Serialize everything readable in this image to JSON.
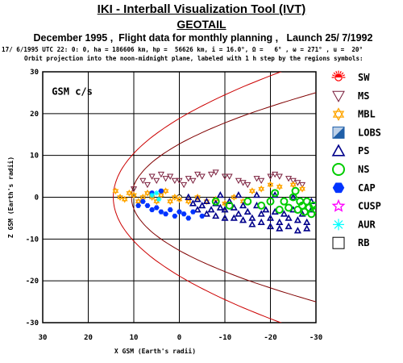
{
  "header": {
    "title": "IKI - Interball Visualization Tool (IVT)",
    "satellite": "GEOTAIL",
    "subtitle": "December 1995 ,  Flight data for monthly planning ,   Launch 25/ 7/1992",
    "orbit_params": "17/ 6/1995 UTC 22: 0: 0, ha = 186606 km, hp =  56626 km, i = 16.0°, Ω =   6° , ω = 271° , u =  20°",
    "note": "Orbit projection into the noon-midnight plane, labeled with 1 h step by the regions symbols:"
  },
  "chart_data": {
    "type": "scatter",
    "coord_label": "GSM c/s",
    "xlabel": "X GSM (Earth's radii)",
    "ylabel": "Z GSM (Earth's radii)",
    "xlim": [
      30,
      -30
    ],
    "ylim": [
      -30,
      30
    ],
    "x_ticks": [
      "30",
      "20",
      "10",
      "0",
      "-10",
      "-20",
      "-30"
    ],
    "y_ticks": [
      "30",
      "20",
      "10",
      "0",
      "-10",
      "-20",
      "-30"
    ],
    "grid": true,
    "legend": [
      {
        "name": "SW",
        "symbol": "sun",
        "color": "#ff0000"
      },
      {
        "name": "MS",
        "symbol": "triangle-down-open",
        "color": "#7a1e3c"
      },
      {
        "name": "MBL",
        "symbol": "star-of-david",
        "color": "#ffa500"
      },
      {
        "name": "LOBS",
        "symbol": "half-square",
        "color": "#1f5fa8"
      },
      {
        "name": "PS",
        "symbol": "triangle-open",
        "color": "#00008b"
      },
      {
        "name": "NS",
        "symbol": "circle-open",
        "color": "#00cc00"
      },
      {
        "name": "CAP",
        "symbol": "hexagon-filled",
        "color": "#0033ff"
      },
      {
        "name": "CUSP",
        "symbol": "star-open",
        "color": "#ff00ff"
      },
      {
        "name": "AUR",
        "symbol": "asterisk",
        "color": "#00ffff"
      },
      {
        "name": "RB",
        "symbol": "square-open",
        "color": "#000000"
      }
    ],
    "boundaries": [
      {
        "name": "bow shock",
        "color": "#cc0000",
        "nose_x": 14.5,
        "flank_z_at_x_minus30": 33
      },
      {
        "name": "magnetopause",
        "color": "#800000",
        "nose_x": 10.5,
        "flank_z_at_x_minus30": 25
      }
    ],
    "earth": {
      "x": 0,
      "z": 0
    },
    "series": [
      {
        "name": "MS",
        "points": [
          [
            10,
            2
          ],
          [
            8,
            4
          ],
          [
            6,
            5
          ],
          [
            4,
            5.5
          ],
          [
            2,
            5
          ],
          [
            0,
            4
          ],
          [
            -1,
            3
          ],
          [
            -3,
            4
          ],
          [
            -5,
            5
          ],
          [
            -7,
            5.5
          ],
          [
            -10,
            5
          ],
          [
            -13,
            4
          ],
          [
            -15,
            3
          ],
          [
            -18,
            4
          ],
          [
            -20,
            5
          ],
          [
            -22,
            5
          ],
          [
            -25,
            4
          ],
          [
            -27,
            3
          ],
          [
            7,
            3
          ],
          [
            5,
            4
          ],
          [
            3,
            4.5
          ],
          [
            1,
            4
          ],
          [
            -2,
            4.5
          ],
          [
            -4,
            5.5
          ],
          [
            -8,
            6
          ],
          [
            -11,
            5
          ],
          [
            -14,
            3.5
          ],
          [
            -17,
            4.5
          ],
          [
            -21,
            5.5
          ],
          [
            -24,
            4.5
          ],
          [
            -26,
            3.5
          ]
        ]
      },
      {
        "name": "MBL",
        "points": [
          [
            14,
            1.5
          ],
          [
            13,
            0
          ],
          [
            12,
            -0.5
          ],
          [
            11,
            1
          ],
          [
            10,
            0.5
          ],
          [
            9,
            -1
          ],
          [
            8,
            0
          ],
          [
            7,
            1
          ],
          [
            6,
            0
          ],
          [
            5,
            -1
          ],
          [
            4,
            0.5
          ],
          [
            3,
            1.5
          ],
          [
            2,
            -1
          ],
          [
            1,
            0
          ],
          [
            0,
            -0.5
          ],
          [
            -2,
            -1
          ],
          [
            -4,
            0
          ],
          [
            -6,
            -1
          ],
          [
            -8,
            -0.5
          ],
          [
            -10,
            -1.5
          ],
          [
            -12,
            0
          ],
          [
            -14,
            -1
          ],
          [
            -16,
            1.5
          ],
          [
            -18,
            2
          ],
          [
            -20,
            3
          ],
          [
            -22,
            2.5
          ],
          [
            -25,
            3
          ],
          [
            -27,
            2
          ]
        ]
      },
      {
        "name": "PS",
        "points": [
          [
            -2,
            0
          ],
          [
            -3,
            -1.5
          ],
          [
            -4,
            -0.5
          ],
          [
            -5,
            -2
          ],
          [
            -6,
            -1
          ],
          [
            -7,
            -3
          ],
          [
            -8,
            -1.5
          ],
          [
            -9,
            -2.5
          ],
          [
            -10,
            -3
          ],
          [
            -11,
            -1
          ],
          [
            -12,
            -2.5
          ],
          [
            -13,
            -4
          ],
          [
            -14,
            -2
          ],
          [
            -15,
            -3.5
          ],
          [
            -16,
            -5
          ],
          [
            -17,
            -2
          ],
          [
            -18,
            -4
          ],
          [
            -19,
            -3
          ],
          [
            -20,
            -5
          ],
          [
            -21,
            -3.5
          ],
          [
            -22,
            -6
          ],
          [
            -23,
            -4
          ],
          [
            -24,
            -5
          ],
          [
            -25,
            -3
          ],
          [
            -26,
            -5.5
          ],
          [
            -27,
            -4
          ],
          [
            -28,
            -6
          ],
          [
            -29,
            -3
          ],
          [
            -4,
            -3
          ],
          [
            -6,
            -4
          ],
          [
            -8,
            -4.5
          ],
          [
            -10,
            -5
          ],
          [
            -12,
            -5
          ],
          [
            -14,
            -5.5
          ],
          [
            -16,
            -6.5
          ],
          [
            -18,
            -6
          ],
          [
            -20,
            -7
          ],
          [
            -22,
            -7.5
          ],
          [
            -24,
            -7
          ],
          [
            -26,
            -8
          ],
          [
            -28,
            -7.5
          ],
          [
            -9,
            0.5
          ],
          [
            -13,
            0.5
          ],
          [
            -17,
            0.5
          ],
          [
            -21,
            0.5
          ],
          [
            -25,
            0
          ],
          [
            -29,
            -1
          ]
        ]
      },
      {
        "name": "NS",
        "points": [
          [
            -8,
            -1
          ],
          [
            -11,
            -2
          ],
          [
            -15,
            -1
          ],
          [
            -18,
            -2
          ],
          [
            -20,
            -1
          ],
          [
            -22,
            -3
          ],
          [
            -23,
            -1
          ],
          [
            -24,
            -2.5
          ],
          [
            -25,
            0
          ],
          [
            -26,
            -3
          ],
          [
            -26.5,
            -1
          ],
          [
            -27,
            -2
          ],
          [
            -27.5,
            -3.5
          ],
          [
            -28,
            -1
          ],
          [
            -28.5,
            -2.5
          ],
          [
            -29,
            -4
          ],
          [
            -29.5,
            -2
          ],
          [
            -30,
            -3
          ],
          [
            -21,
            1
          ],
          [
            -25.5,
            1.5
          ]
        ]
      },
      {
        "name": "CAP",
        "points": [
          [
            8,
            -1
          ],
          [
            7,
            -2
          ],
          [
            6,
            -3
          ],
          [
            5,
            -2.5
          ],
          [
            4,
            -3.5
          ],
          [
            3,
            -4
          ],
          [
            2,
            -3
          ],
          [
            1,
            -4.5
          ],
          [
            0,
            -3.5
          ],
          [
            -1,
            -4
          ],
          [
            -2,
            -5
          ],
          [
            -3,
            -3.5
          ],
          [
            -5,
            -4.5
          ],
          [
            9,
            -2
          ],
          [
            4,
            1.5
          ],
          [
            6,
            1
          ]
        ]
      },
      {
        "name": "AUR",
        "points": [
          [
            5,
            1
          ],
          [
            6,
            0.5
          ],
          [
            4.5,
            -0.5
          ]
        ]
      }
    ]
  }
}
